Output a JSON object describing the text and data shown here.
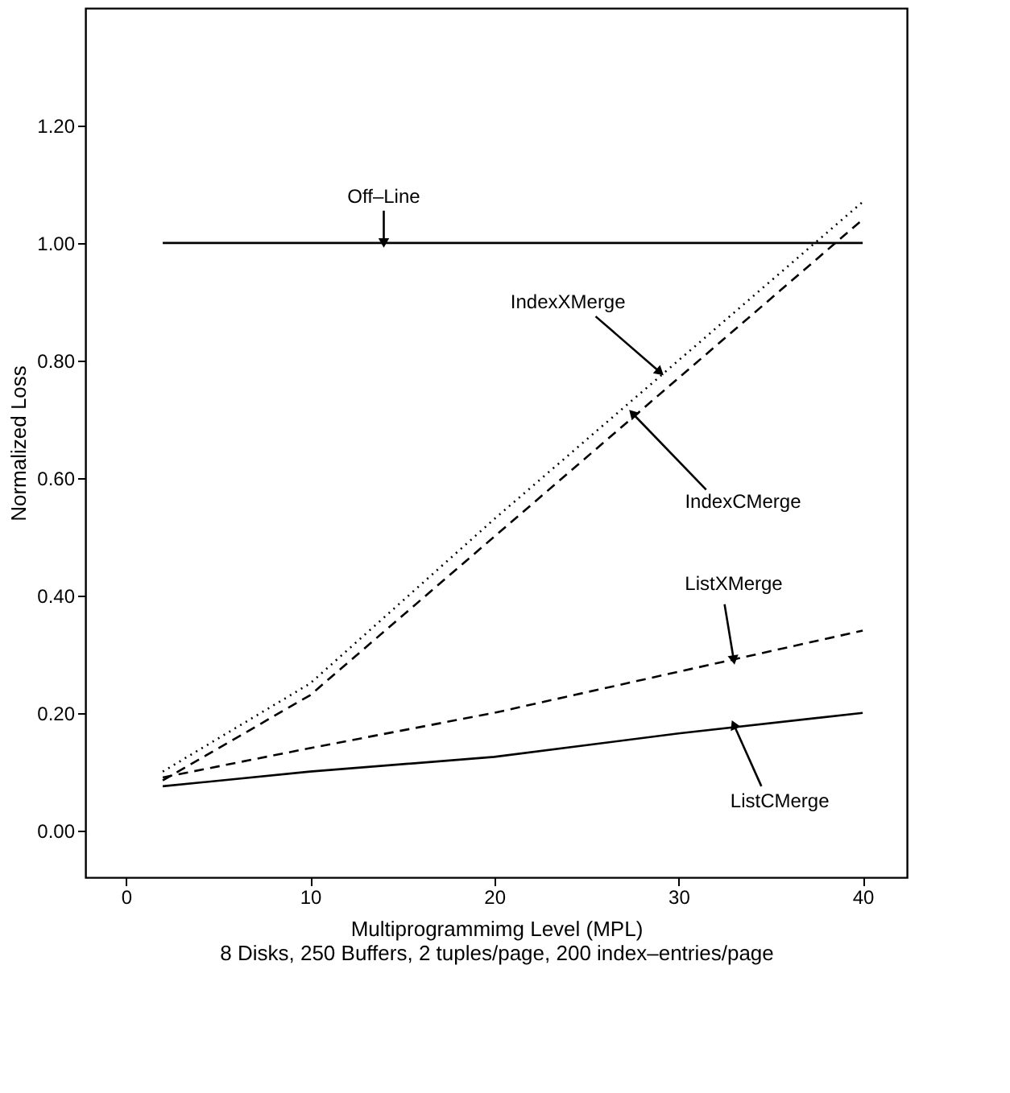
{
  "chart_data": {
    "type": "line",
    "xlabel": "Multiprogrammimg Level (MPL)",
    "ylabel": "Normalized Loss",
    "x": [
      2,
      10,
      20,
      30,
      40
    ],
    "series": [
      {
        "color": "#000000",
        "line_style": "solid",
        "values": [
          1.0,
          1.0,
          1.0,
          1.0,
          1.0
        ]
      },
      {
        "color": "#000000",
        "line_style": "dotted",
        "values": [
          0.1,
          0.25,
          0.53,
          0.8,
          1.07
        ]
      },
      {
        "color": "#000000",
        "line_style": "dashed",
        "values": [
          0.085,
          0.23,
          0.5,
          0.77,
          1.04
        ]
      },
      {
        "color": "#000000",
        "line_style": "dashed",
        "values": [
          0.09,
          0.14,
          0.2,
          0.27,
          0.34
        ]
      },
      {
        "color": "#000000",
        "line_style": "solid",
        "values": [
          0.075,
          0.1,
          0.125,
          0.165,
          0.2
        ]
      }
    ],
    "xlim": [
      -2.2,
      42.4
    ],
    "ylim": [
      -0.08,
      1.4
    ],
    "xticks": [
      0,
      10,
      20,
      30,
      40
    ],
    "yticks": [
      {
        "value": 0,
        "label": "0.00"
      },
      {
        "value": 0.2,
        "label": "0.20"
      },
      {
        "value": 0.4,
        "label": "0.40"
      },
      {
        "value": 0.6,
        "label": "0.60"
      },
      {
        "value": 0.8,
        "label": "0.80"
      },
      {
        "value": 1.0,
        "label": "1.00"
      },
      {
        "value": 1.2,
        "label": "1.20"
      }
    ],
    "grid": false,
    "annotations": [
      {
        "text": "Off–Line",
        "x": 14,
        "y": 1.0
      },
      {
        "text": "IndexXMerge",
        "x": 29,
        "y": 0.78
      },
      {
        "text": "IndexCMerge",
        "x": 27.5,
        "y": 0.71
      },
      {
        "text": "ListXMerge",
        "x": 33,
        "y": 0.29
      },
      {
        "text": "ListCMerge",
        "x": 33,
        "y": 0.18
      },
      "8 Disks, 250 Buffers, 2 tuples/page, 200 index–entries/page"
    ]
  }
}
